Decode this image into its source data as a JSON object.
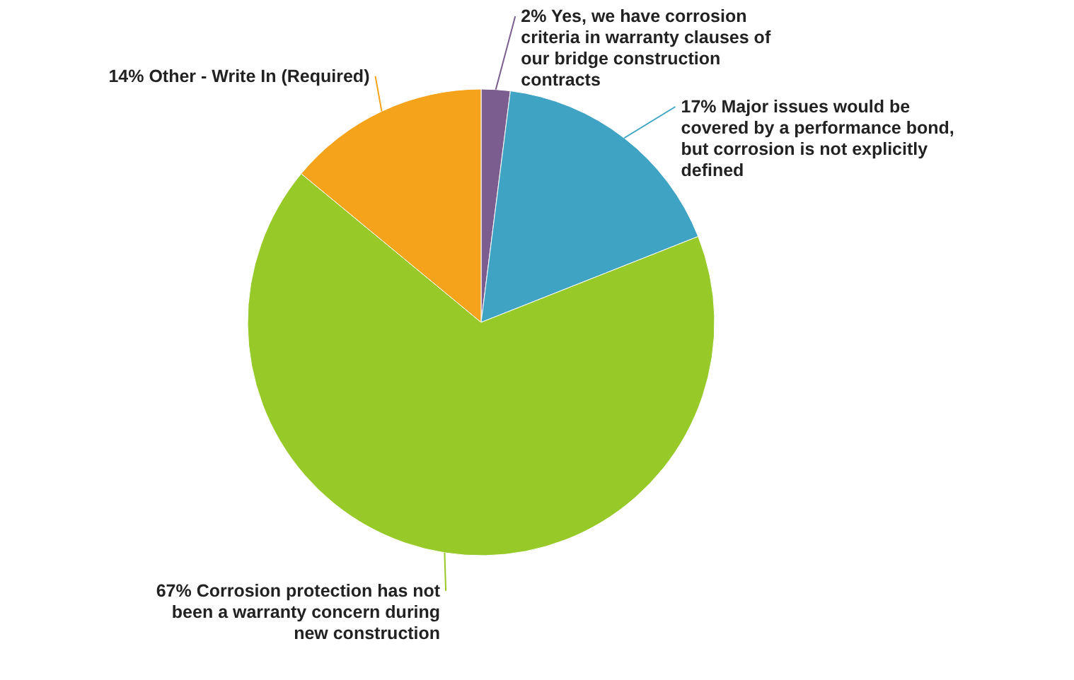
{
  "chart_data": {
    "type": "pie",
    "categories": [
      "Yes, we have corrosion criteria in warranty clauses of our bridge construction contracts",
      "Major issues would be covered by a performance bond, but corrosion is not explicitly defined",
      "Corrosion protection has not been a warranty concern during new construction",
      "Other - Write In (Required)"
    ],
    "values": [
      2,
      17,
      67,
      14
    ],
    "colors": [
      "#7b5e8f",
      "#3fa4c4",
      "#97c928",
      "#f5a31b"
    ],
    "value_labels": [
      "2%",
      "17%",
      "67%",
      "14%"
    ]
  }
}
